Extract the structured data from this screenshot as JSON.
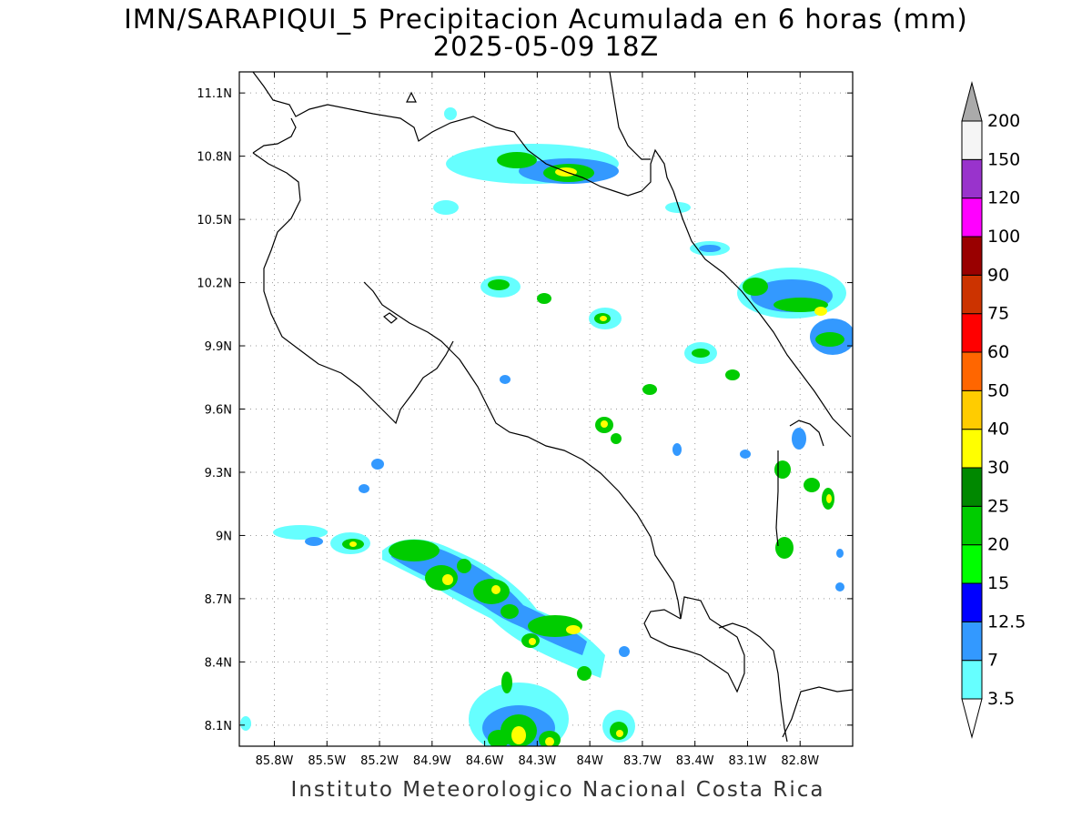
{
  "title": {
    "line1": "IMN/SARAPIQUI_5 Precipitacion Acumulada en 6 horas (mm)",
    "line2": "2025-05-09 18Z"
  },
  "footer": "Instituto Meteorologico Nacional Costa Rica",
  "map": {
    "lon_range": [
      -86.0,
      -82.5
    ],
    "lat_range": [
      8.0,
      11.2
    ],
    "lon_ticks": [
      {
        "value": -85.8,
        "label": "85.8W"
      },
      {
        "value": -85.5,
        "label": "85.5W"
      },
      {
        "value": -85.2,
        "label": "85.2W"
      },
      {
        "value": -84.9,
        "label": "84.9W"
      },
      {
        "value": -84.6,
        "label": "84.6W"
      },
      {
        "value": -84.3,
        "label": "84.3W"
      },
      {
        "value": -84.0,
        "label": "84W"
      },
      {
        "value": -83.7,
        "label": "83.7W"
      },
      {
        "value": -83.4,
        "label": "83.4W"
      },
      {
        "value": -83.1,
        "label": "83.1W"
      },
      {
        "value": -82.8,
        "label": "82.8W"
      }
    ],
    "lat_ticks": [
      {
        "value": 11.1,
        "label": "11.1N"
      },
      {
        "value": 10.8,
        "label": "10.8N"
      },
      {
        "value": 10.5,
        "label": "10.5N"
      },
      {
        "value": 10.2,
        "label": "10.2N"
      },
      {
        "value": 9.9,
        "label": "9.9N"
      },
      {
        "value": 9.6,
        "label": "9.6N"
      },
      {
        "value": 9.3,
        "label": "9.3N"
      },
      {
        "value": 9.0,
        "label": "9N"
      },
      {
        "value": 8.7,
        "label": "8.7N"
      },
      {
        "value": 8.4,
        "label": "8.4N"
      },
      {
        "value": 8.1,
        "label": "8.1N"
      }
    ],
    "grid": "dotted"
  },
  "colorbar": {
    "levels": [
      "3.5",
      "7",
      "12.5",
      "15",
      "20",
      "25",
      "30",
      "40",
      "50",
      "60",
      "75",
      "90",
      "100",
      "120",
      "150",
      "200"
    ],
    "colors": [
      "#66ffff",
      "#3399ff",
      "#0000ff",
      "#00ff00",
      "#00cc00",
      "#008800",
      "#ffff00",
      "#ffcc00",
      "#ff6600",
      "#ff0000",
      "#cc3300",
      "#990000",
      "#ff00ff",
      "#9933cc",
      "#f5f5f5",
      "#aaaaaa"
    ]
  }
}
